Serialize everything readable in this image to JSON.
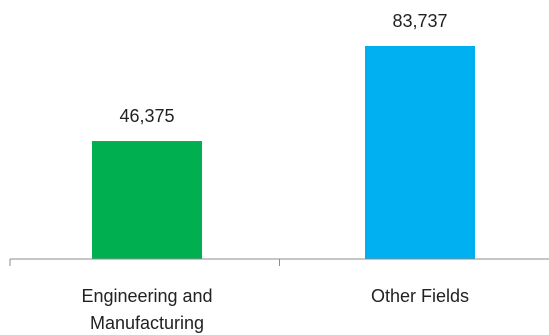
{
  "chart_data": {
    "type": "bar",
    "categories": [
      [
        "Engineering and",
        "Manufacturing"
      ],
      [
        "Other Fields"
      ]
    ],
    "values": [
      46375,
      83737
    ],
    "data_labels": [
      "46,375",
      "83,737"
    ],
    "colors": [
      "#00b050",
      "#00b0f0"
    ],
    "title": "",
    "xlabel": "",
    "ylabel": "",
    "ylim": [
      0,
      90000
    ],
    "grid": false,
    "legend": "none"
  }
}
